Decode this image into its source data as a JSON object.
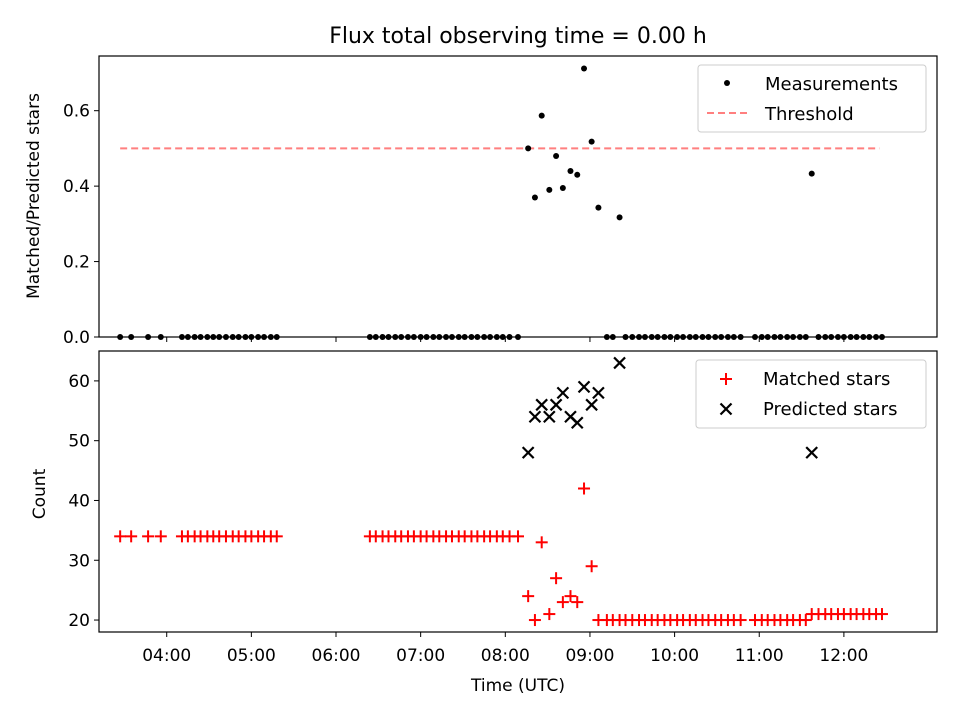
{
  "colors": {
    "measurement": "#000000",
    "threshold": "#ff7f7f",
    "matched": "#ff0000",
    "predicted": "#000000",
    "axes": "#000000"
  },
  "chart_data": [
    {
      "type": "scatter",
      "title": "Flux total observing time = 0.00 h",
      "xlabel": "",
      "ylabel": "Matched/Predicted stars",
      "xlim": [
        3.2,
        13.1
      ],
      "ylim": [
        0.0,
        0.745
      ],
      "yticks": [
        0.0,
        0.2,
        0.4,
        0.6
      ],
      "ytick_labels": [
        "0.0",
        "0.2",
        "0.4",
        "0.6"
      ],
      "legend": {
        "placement": "top-right",
        "entries": [
          "Measurements",
          "Threshold"
        ]
      },
      "threshold": {
        "name": "Threshold",
        "y": 0.5,
        "x_range": [
          3.45,
          12.42
        ]
      },
      "series": [
        {
          "name": "Measurements",
          "points": [
            [
              3.45,
              0
            ],
            [
              3.58,
              0
            ],
            [
              3.78,
              0
            ],
            [
              3.93,
              0
            ],
            [
              4.18,
              0
            ],
            [
              4.25,
              0
            ],
            [
              4.33,
              0
            ],
            [
              4.4,
              0
            ],
            [
              4.48,
              0
            ],
            [
              4.55,
              0
            ],
            [
              4.62,
              0
            ],
            [
              4.7,
              0
            ],
            [
              4.78,
              0
            ],
            [
              4.85,
              0
            ],
            [
              4.93,
              0
            ],
            [
              5.0,
              0
            ],
            [
              5.08,
              0
            ],
            [
              5.15,
              0
            ],
            [
              5.23,
              0
            ],
            [
              5.3,
              0
            ],
            [
              6.4,
              0
            ],
            [
              6.47,
              0
            ],
            [
              6.55,
              0
            ],
            [
              6.62,
              0
            ],
            [
              6.7,
              0
            ],
            [
              6.77,
              0
            ],
            [
              6.85,
              0
            ],
            [
              6.92,
              0
            ],
            [
              7.0,
              0
            ],
            [
              7.07,
              0
            ],
            [
              7.15,
              0
            ],
            [
              7.22,
              0
            ],
            [
              7.3,
              0
            ],
            [
              7.37,
              0
            ],
            [
              7.45,
              0
            ],
            [
              7.52,
              0
            ],
            [
              7.6,
              0
            ],
            [
              7.67,
              0
            ],
            [
              7.75,
              0
            ],
            [
              7.82,
              0
            ],
            [
              7.9,
              0
            ],
            [
              7.97,
              0
            ],
            [
              8.05,
              0
            ],
            [
              8.15,
              0
            ],
            [
              8.27,
              0.5
            ],
            [
              8.35,
              0.37
            ],
            [
              8.43,
              0.587
            ],
            [
              8.52,
              0.39
            ],
            [
              8.6,
              0.48
            ],
            [
              8.68,
              0.395
            ],
            [
              8.77,
              0.44
            ],
            [
              8.85,
              0.43
            ],
            [
              8.93,
              0.712
            ],
            [
              9.02,
              0.518
            ],
            [
              9.1,
              0.343
            ],
            [
              9.35,
              0.317
            ],
            [
              9.2,
              0
            ],
            [
              9.27,
              0
            ],
            [
              9.42,
              0
            ],
            [
              9.5,
              0
            ],
            [
              9.58,
              0
            ],
            [
              9.65,
              0
            ],
            [
              9.73,
              0
            ],
            [
              9.8,
              0
            ],
            [
              9.88,
              0
            ],
            [
              9.95,
              0
            ],
            [
              10.03,
              0
            ],
            [
              10.1,
              0
            ],
            [
              10.18,
              0
            ],
            [
              10.25,
              0
            ],
            [
              10.33,
              0
            ],
            [
              10.4,
              0
            ],
            [
              10.48,
              0
            ],
            [
              10.55,
              0
            ],
            [
              10.63,
              0
            ],
            [
              10.7,
              0
            ],
            [
              10.78,
              0
            ],
            [
              10.95,
              0
            ],
            [
              11.03,
              0
            ],
            [
              11.1,
              0
            ],
            [
              11.18,
              0
            ],
            [
              11.25,
              0
            ],
            [
              11.33,
              0
            ],
            [
              11.4,
              0
            ],
            [
              11.48,
              0
            ],
            [
              11.55,
              0
            ],
            [
              11.62,
              0.433
            ],
            [
              11.7,
              0
            ],
            [
              11.78,
              0
            ],
            [
              11.85,
              0
            ],
            [
              11.93,
              0
            ],
            [
              12.0,
              0
            ],
            [
              12.08,
              0
            ],
            [
              12.15,
              0
            ],
            [
              12.23,
              0
            ],
            [
              12.3,
              0
            ],
            [
              12.38,
              0
            ],
            [
              12.45,
              0
            ]
          ]
        }
      ]
    },
    {
      "type": "scatter",
      "title": "",
      "xlabel": "Time (UTC)",
      "ylabel": "Count",
      "xlim": [
        3.2,
        13.1
      ],
      "ylim": [
        18.0,
        65.0
      ],
      "xticks": [
        4,
        5,
        6,
        7,
        8,
        9,
        10,
        11,
        12
      ],
      "xtick_labels": [
        "04:00",
        "05:00",
        "06:00",
        "07:00",
        "08:00",
        "09:00",
        "10:00",
        "11:00",
        "12:00"
      ],
      "yticks": [
        20,
        30,
        40,
        50,
        60
      ],
      "ytick_labels": [
        "20",
        "30",
        "40",
        "50",
        "60"
      ],
      "legend": {
        "placement": "top-right",
        "entries": [
          "Matched stars",
          "Predicted stars"
        ]
      },
      "series": [
        {
          "name": "Matched stars",
          "marker": "plus",
          "points": [
            [
              3.45,
              34
            ],
            [
              3.58,
              34
            ],
            [
              3.78,
              34
            ],
            [
              3.93,
              34
            ],
            [
              4.18,
              34
            ],
            [
              4.25,
              34
            ],
            [
              4.33,
              34
            ],
            [
              4.4,
              34
            ],
            [
              4.48,
              34
            ],
            [
              4.55,
              34
            ],
            [
              4.62,
              34
            ],
            [
              4.7,
              34
            ],
            [
              4.78,
              34
            ],
            [
              4.85,
              34
            ],
            [
              4.93,
              34
            ],
            [
              5.0,
              34
            ],
            [
              5.08,
              34
            ],
            [
              5.15,
              34
            ],
            [
              5.23,
              34
            ],
            [
              5.3,
              34
            ],
            [
              6.4,
              34
            ],
            [
              6.47,
              34
            ],
            [
              6.55,
              34
            ],
            [
              6.62,
              34
            ],
            [
              6.7,
              34
            ],
            [
              6.77,
              34
            ],
            [
              6.85,
              34
            ],
            [
              6.92,
              34
            ],
            [
              7.0,
              34
            ],
            [
              7.07,
              34
            ],
            [
              7.15,
              34
            ],
            [
              7.22,
              34
            ],
            [
              7.3,
              34
            ],
            [
              7.37,
              34
            ],
            [
              7.45,
              34
            ],
            [
              7.52,
              34
            ],
            [
              7.6,
              34
            ],
            [
              7.67,
              34
            ],
            [
              7.75,
              34
            ],
            [
              7.82,
              34
            ],
            [
              7.9,
              34
            ],
            [
              7.97,
              34
            ],
            [
              8.05,
              34
            ],
            [
              8.15,
              34
            ],
            [
              8.27,
              24
            ],
            [
              8.35,
              20
            ],
            [
              8.43,
              33
            ],
            [
              8.52,
              21
            ],
            [
              8.6,
              27
            ],
            [
              8.68,
              23
            ],
            [
              8.77,
              24
            ],
            [
              8.85,
              23
            ],
            [
              8.93,
              42
            ],
            [
              9.02,
              29
            ],
            [
              9.1,
              20
            ],
            [
              9.2,
              20
            ],
            [
              9.27,
              20
            ],
            [
              9.35,
              20
            ],
            [
              9.42,
              20
            ],
            [
              9.5,
              20
            ],
            [
              9.58,
              20
            ],
            [
              9.65,
              20
            ],
            [
              9.73,
              20
            ],
            [
              9.8,
              20
            ],
            [
              9.88,
              20
            ],
            [
              9.95,
              20
            ],
            [
              10.03,
              20
            ],
            [
              10.1,
              20
            ],
            [
              10.18,
              20
            ],
            [
              10.25,
              20
            ],
            [
              10.33,
              20
            ],
            [
              10.4,
              20
            ],
            [
              10.48,
              20
            ],
            [
              10.55,
              20
            ],
            [
              10.63,
              20
            ],
            [
              10.7,
              20
            ],
            [
              10.78,
              20
            ],
            [
              10.95,
              20
            ],
            [
              11.03,
              20
            ],
            [
              11.1,
              20
            ],
            [
              11.18,
              20
            ],
            [
              11.25,
              20
            ],
            [
              11.33,
              20
            ],
            [
              11.4,
              20
            ],
            [
              11.48,
              20
            ],
            [
              11.55,
              20
            ],
            [
              11.62,
              21
            ],
            [
              11.7,
              21
            ],
            [
              11.78,
              21
            ],
            [
              11.85,
              21
            ],
            [
              11.93,
              21
            ],
            [
              12.0,
              21
            ],
            [
              12.08,
              21
            ],
            [
              12.15,
              21
            ],
            [
              12.23,
              21
            ],
            [
              12.3,
              21
            ],
            [
              12.38,
              21
            ],
            [
              12.45,
              21
            ]
          ]
        },
        {
          "name": "Predicted stars",
          "marker": "x",
          "points": [
            [
              8.27,
              48
            ],
            [
              8.35,
              54
            ],
            [
              8.43,
              56
            ],
            [
              8.52,
              54
            ],
            [
              8.6,
              56
            ],
            [
              8.68,
              58
            ],
            [
              8.77,
              54
            ],
            [
              8.85,
              53
            ],
            [
              8.93,
              59
            ],
            [
              9.02,
              56
            ],
            [
              9.1,
              58
            ],
            [
              9.35,
              63
            ],
            [
              11.62,
              48
            ]
          ]
        }
      ]
    }
  ]
}
